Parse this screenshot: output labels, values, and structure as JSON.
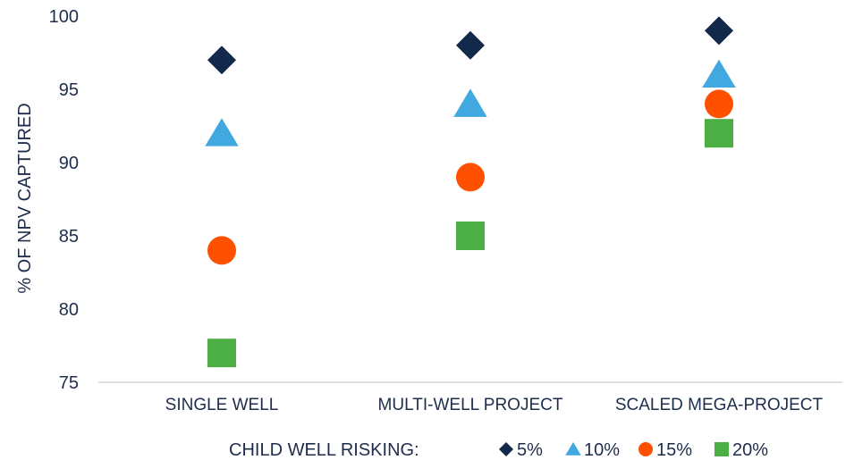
{
  "chart_data": {
    "type": "scatter",
    "categories": [
      "SINGLE WELL",
      "MULTI-WELL PROJECT",
      "SCALED MEGA-PROJECT"
    ],
    "ylabel": "% OF NPV CAPTURED",
    "ylim": [
      75,
      100
    ],
    "yticks": [
      75,
      80,
      85,
      90,
      95,
      100
    ],
    "grid": false,
    "legend_title": "CHILD WELL RISKING:",
    "legend_position": "bottom",
    "series": [
      {
        "name": "5%",
        "marker": "diamond",
        "color": "#13294b",
        "values": [
          97,
          98,
          99
        ]
      },
      {
        "name": "10%",
        "marker": "triangle",
        "color": "#41a8e0",
        "values": [
          92,
          94,
          96
        ]
      },
      {
        "name": "15%",
        "marker": "circle",
        "color": "#ff5000",
        "values": [
          84,
          89,
          94
        ]
      },
      {
        "name": "20%",
        "marker": "square",
        "color": "#4caf45",
        "values": [
          77,
          85,
          92
        ]
      }
    ]
  }
}
